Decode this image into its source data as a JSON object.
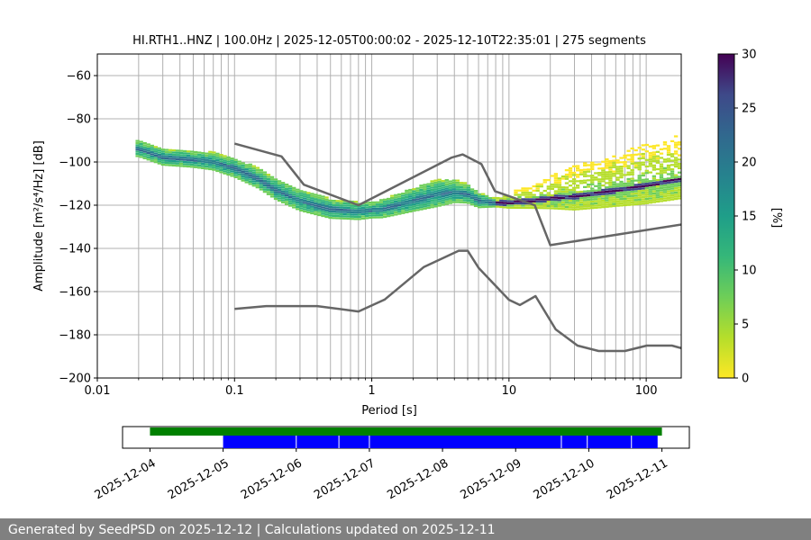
{
  "chart_data": {
    "type": "heatmap",
    "title": "HI.RTH1..HNZ | 100.0Hz | 2025-12-05T00:00:02 - 2025-12-10T22:35:01 | 275 segments",
    "xlabel": "Period [s]",
    "ylabel": "Amplitude [m²/s⁴/Hz] [dB]",
    "x_scale": "log",
    "xlim": [
      0.01,
      180
    ],
    "ylim": [
      -200,
      -50
    ],
    "x_ticks": [
      "0.01",
      "0.1",
      "1",
      "10",
      "100"
    ],
    "y_ticks": [
      "−60",
      "−80",
      "−100",
      "−120",
      "−140",
      "−160",
      "−180",
      "−200"
    ],
    "colorbar": {
      "label": "[%]",
      "range": [
        0,
        30
      ],
      "ticks": [
        "0",
        "5",
        "10",
        "15",
        "20",
        "25",
        "30"
      ],
      "colormap": "viridis_r"
    },
    "high_noise_model": {
      "x": [
        0.1,
        0.22,
        0.32,
        0.8,
        3.8,
        4.6,
        6.3,
        7.9,
        15.4,
        20,
        354
      ],
      "y": [
        -91.5,
        -97.4,
        -110.5,
        -120,
        -98,
        -96.5,
        -101,
        -113.5,
        -120,
        -138.5,
        -126
      ]
    },
    "low_noise_model": {
      "x": [
        0.1,
        0.17,
        0.4,
        0.8,
        1.24,
        2.4,
        4.3,
        5.0,
        6.0,
        10.0,
        12.0,
        15.6,
        21.9,
        31.6,
        45.0,
        70.0,
        101.0,
        154.0,
        200.0
      ],
      "y": [
        -168,
        -166.7,
        -166.7,
        -169.2,
        -163.7,
        -148.6,
        -141.1,
        -141.1,
        -149.0,
        -163.8,
        -166.2,
        -162.1,
        -177.5,
        -185.0,
        -187.5,
        -187.5,
        -185.0,
        -185.0,
        -187.0
      ]
    },
    "mode_curve": {
      "x": [
        0.02,
        0.03,
        0.05,
        0.07,
        0.1,
        0.15,
        0.2,
        0.3,
        0.5,
        0.8,
        1.2,
        2,
        3,
        4,
        5,
        6,
        8,
        10,
        15,
        20,
        30,
        50,
        80,
        120,
        180
      ],
      "y": [
        -94,
        -98,
        -99,
        -100,
        -103,
        -108,
        -113,
        -118,
        -122,
        -123,
        -122,
        -118,
        -115,
        -114,
        -115,
        -118,
        -119,
        -119,
        -118,
        -117,
        -116,
        -114,
        -112,
        -110,
        -108
      ]
    },
    "spread_db": {
      "x": [
        0.02,
        0.05,
        0.1,
        0.3,
        1,
        3,
        5,
        8,
        15,
        30,
        60,
        100,
        180
      ],
      "width": [
        6,
        6,
        7,
        8,
        6,
        10,
        7,
        3,
        6,
        11,
        13,
        15,
        16
      ]
    },
    "coverage": {
      "x_ticks": [
        "2025-12-04",
        "2025-12-05",
        "2025-12-06",
        "2025-12-07",
        "2025-12-08",
        "2025-12-09",
        "2025-12-10",
        "2025-12-11"
      ],
      "xlim": [
        "2025-12-03T15:00",
        "2025-12-11T09:00"
      ],
      "available_data": {
        "start": "2025-12-04T00:00",
        "end": "2025-12-11T00:00",
        "color": "#008000"
      },
      "psd_segments": {
        "start": "2025-12-05T00:00",
        "end": "2025-12-10T22:35",
        "color": "#0000ff"
      },
      "gaps": [
        "2025-12-06T00:00",
        "2025-12-06T14:00",
        "2025-12-07T00:00",
        "2025-12-09T15:00",
        "2025-12-09T23:30",
        "2025-12-10T14:00"
      ]
    }
  },
  "footer": {
    "text": "Generated by SeedPSD on 2025-12-12 | Calculations updated on 2025-12-11",
    "background": "#808080"
  }
}
